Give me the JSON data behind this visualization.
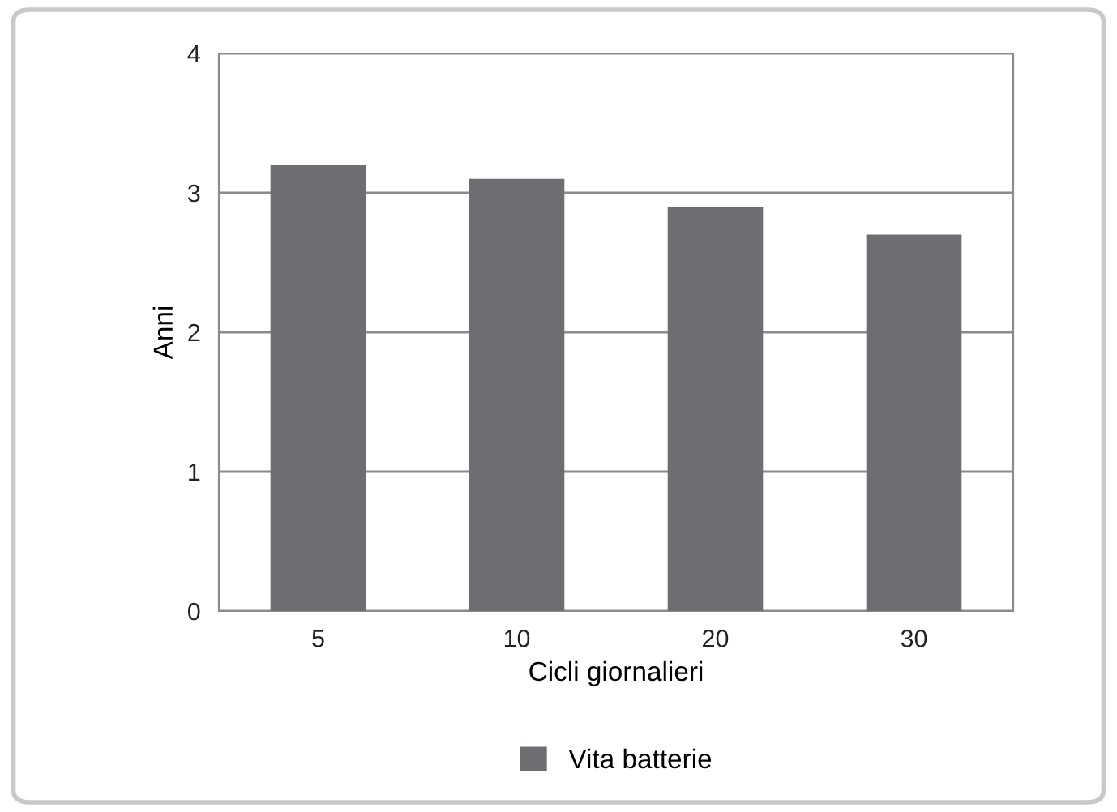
{
  "chart_data": {
    "type": "bar",
    "xlabel": "Cicli giornalieri",
    "ylabel": "Anni",
    "categories": [
      "5",
      "10",
      "20",
      "30"
    ],
    "series": [
      {
        "name": "Vita batterie",
        "color": "#6d6e71",
        "values": [
          3.2,
          3.1,
          2.9,
          2.7
        ]
      }
    ],
    "ylim": [
      0,
      4
    ],
    "yticks": [
      0,
      1,
      2,
      3,
      4
    ],
    "grid": "y",
    "legend": "bottom"
  }
}
